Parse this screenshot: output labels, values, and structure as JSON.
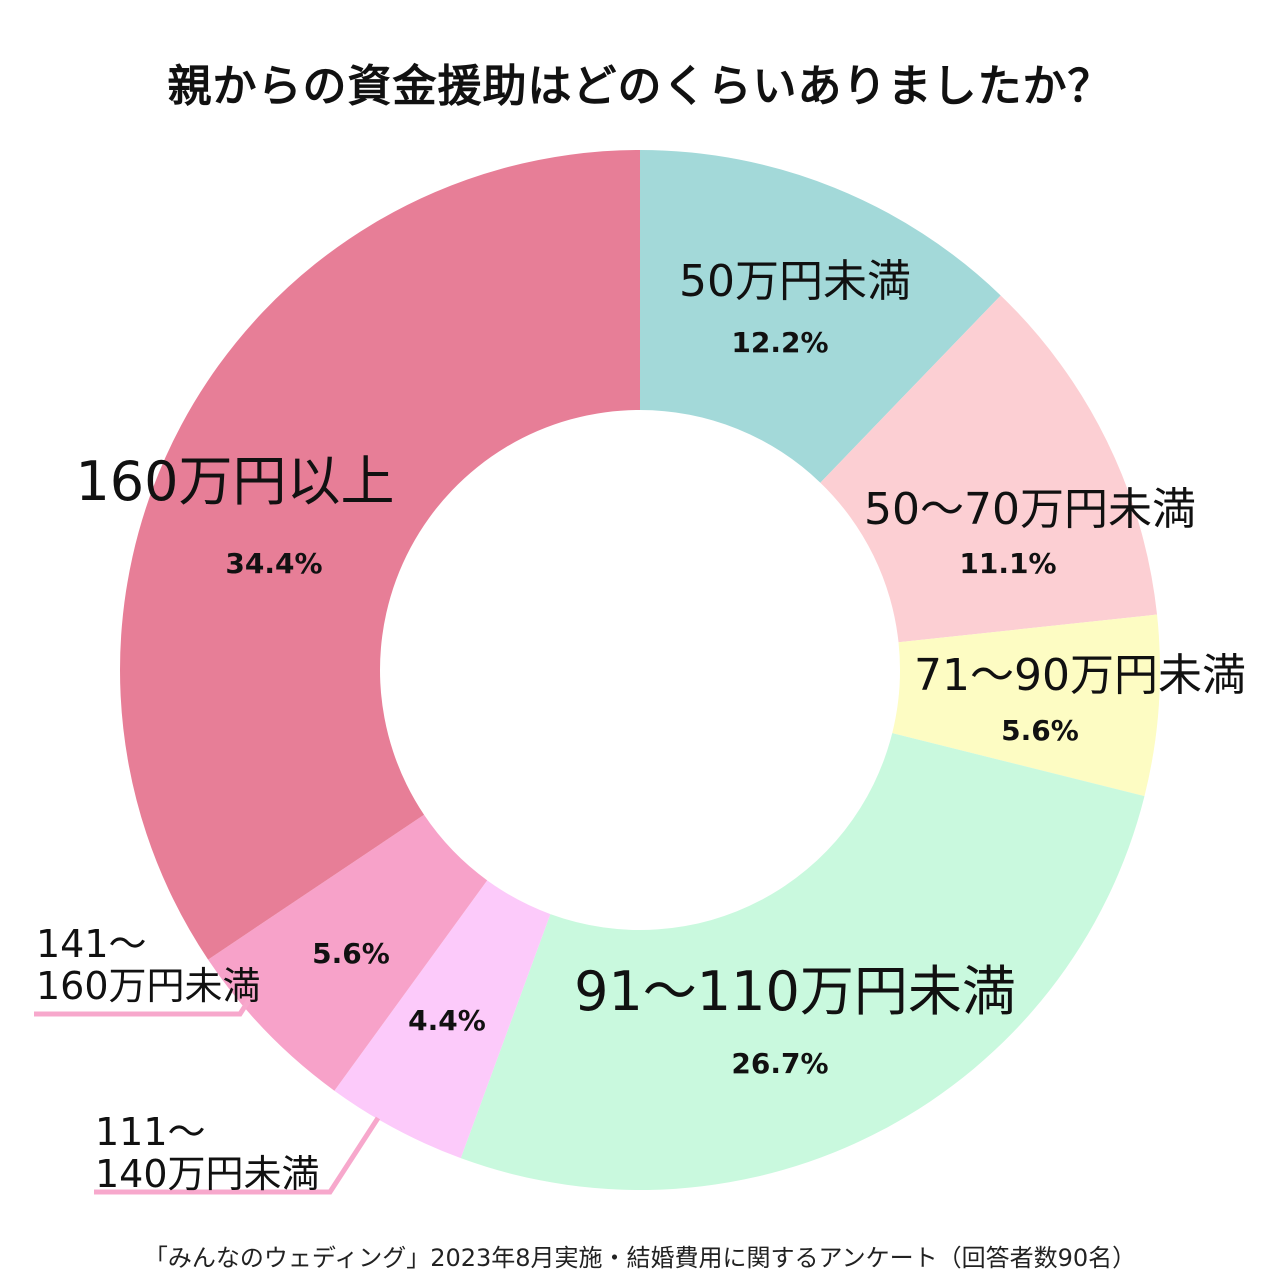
{
  "chart_data": {
    "type": "pie",
    "title": "親からの資金援助はどのくらいありましたか？",
    "categories": [
      "50万円未満",
      "50〜70万円未満",
      "71〜90万円未満",
      "91〜110万円未満",
      "111〜140万円未満",
      "141〜160万円未満",
      "160万円以上"
    ],
    "values": [
      12.2,
      11.1,
      5.6,
      26.7,
      4.4,
      5.6,
      34.4
    ],
    "value_labels": [
      "12.2%",
      "11.1%",
      "5.6%",
      "26.7%",
      "4.4%",
      "5.6%",
      "34.4%"
    ],
    "label_lines": [
      [
        "50万円未満"
      ],
      [
        "50〜70万円未満"
      ],
      [
        "71〜90万円未満"
      ],
      [
        "91〜110万円未満"
      ],
      [
        "111〜",
        "140万円未満"
      ],
      [
        "141〜",
        "160万円未満"
      ],
      [
        "160万円以上"
      ]
    ],
    "colors": [
      "#a3d9d9",
      "#fccfd3",
      "#fdfcc3",
      "#c9f9de",
      "#fccafa",
      "#f7a2c9",
      "#e77e97"
    ],
    "leader_color": "#f7a8cc",
    "donut": true
  },
  "source_note": "「みんなのウェディング」2023年8月実施・結婚費用に関するアンケート（回答者数90名）"
}
